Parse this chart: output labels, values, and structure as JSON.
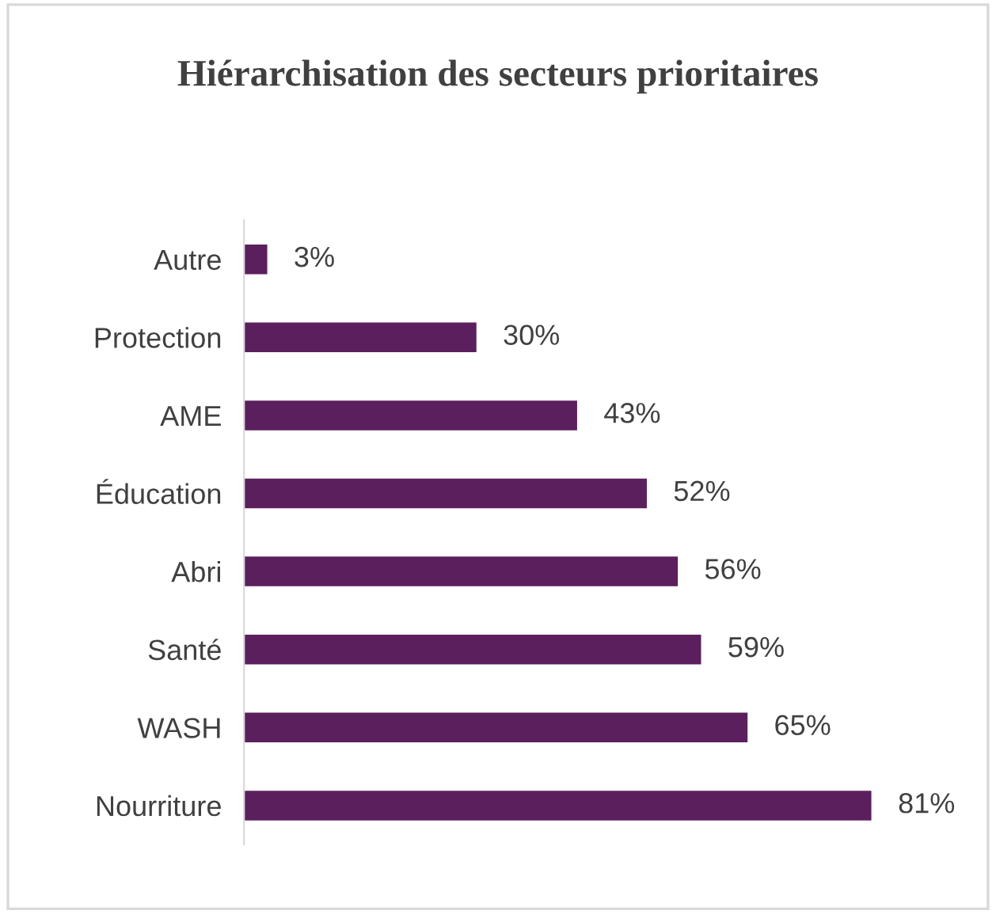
{
  "chart_data": {
    "type": "bar",
    "orientation": "horizontal",
    "title": "Hiérarchisation des secteurs prioritaires",
    "categories": [
      "Autre",
      "Protection",
      "AME",
      "Éducation",
      "Abri",
      "Santé",
      "WASH",
      "Nourriture"
    ],
    "values": [
      3,
      30,
      43,
      52,
      56,
      59,
      65,
      81
    ],
    "value_labels": [
      "3%",
      "30%",
      "43%",
      "52%",
      "56%",
      "59%",
      "65%",
      "81%"
    ],
    "color": "#5c1f5e",
    "grid": false,
    "legend": false
  }
}
